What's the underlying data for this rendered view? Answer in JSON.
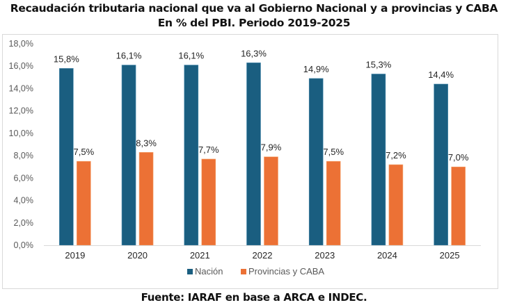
{
  "header": {
    "title_line1": "Recaudación tributaria nacional que va al Gobierno Nacional y a provincias y CABA",
    "title_line2": "En % del PBI. Periodo 2019-2025"
  },
  "footer": {
    "source": "Fuente: IARAF en base a ARCA e INDEC."
  },
  "chart_data": {
    "type": "bar",
    "title": "Recaudación tributaria nacional que va al Gobierno Nacional y a provincias y CABA",
    "subtitle": "En % del PBI. Periodo 2019-2025",
    "categories": [
      "2019",
      "2020",
      "2021",
      "2022",
      "2023",
      "2024",
      "2025"
    ],
    "series": [
      {
        "name": "Nación",
        "color": "#1a5e80",
        "values": [
          15.8,
          16.1,
          16.1,
          16.3,
          14.9,
          15.3,
          14.4
        ],
        "labels": [
          "15,8%",
          "16,1%",
          "16,1%",
          "16,3%",
          "14,9%",
          "15,3%",
          "14,4%"
        ]
      },
      {
        "name": "Provincias y CABA",
        "color": "#ec7135",
        "values": [
          7.5,
          8.3,
          7.7,
          7.9,
          7.5,
          7.2,
          7.0
        ],
        "labels": [
          "7,5%",
          "8,3%",
          "7,7%",
          "7,9%",
          "7,5%",
          "7,2%",
          "7,0%"
        ]
      }
    ],
    "xlabel": "",
    "ylabel": "",
    "ylim": [
      0,
      18
    ],
    "yticks": [
      0,
      2,
      4,
      6,
      8,
      10,
      12,
      14,
      16,
      18
    ],
    "ytick_labels": [
      "0,0%",
      "2,0%",
      "4,0%",
      "6,0%",
      "8,0%",
      "10,0%",
      "12,0%",
      "14,0%",
      "16,0%",
      "18,0%"
    ],
    "grid": false,
    "legend_position": "bottom"
  }
}
